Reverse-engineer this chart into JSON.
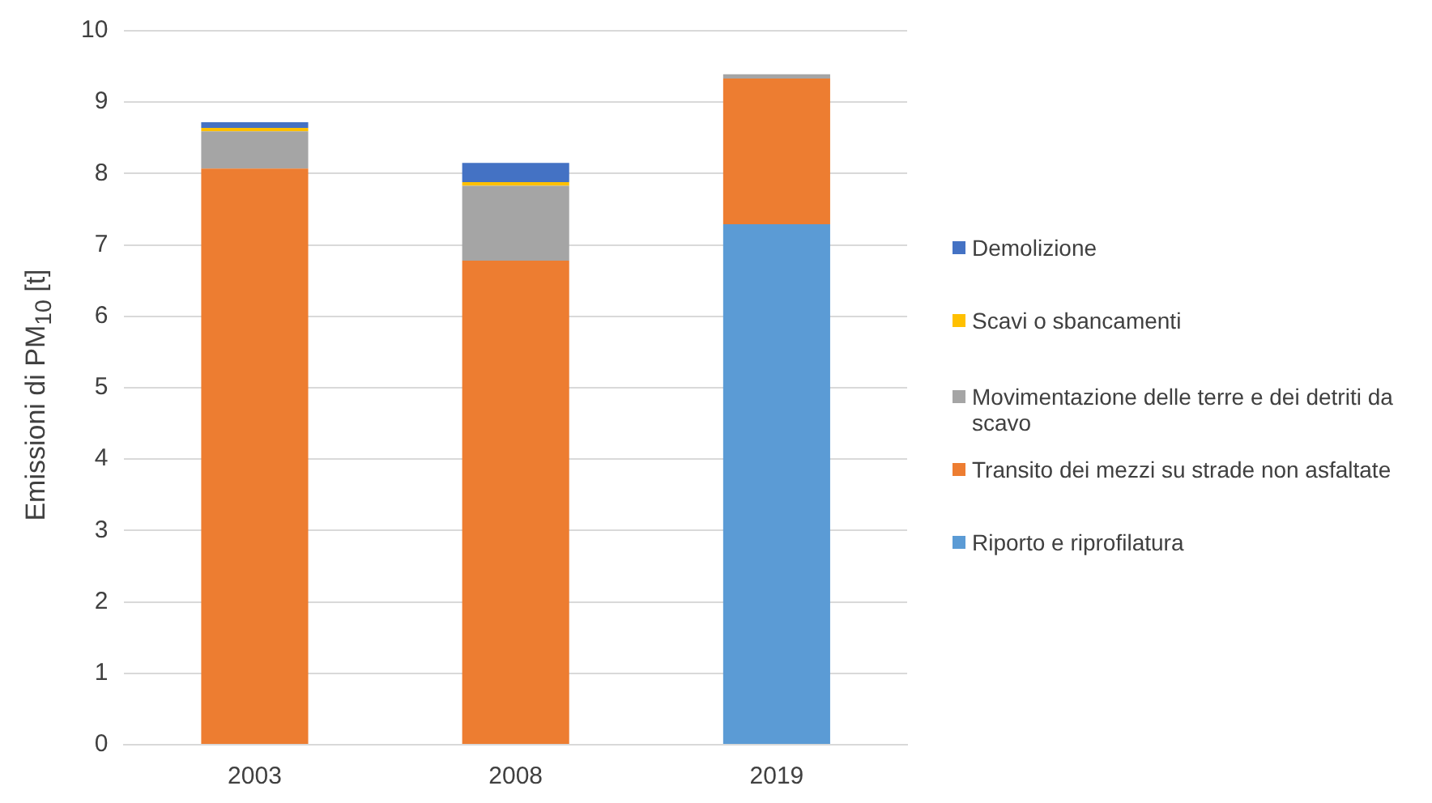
{
  "chart_data": {
    "type": "bar",
    "stacked": true,
    "ylabel": "Emissioni di PM$_{10}$ [t]",
    "categories": [
      "2003",
      "2008",
      "2019"
    ],
    "series": [
      {
        "name": "Riporto e riprofilatura",
        "color": "#5b9bd5",
        "values": [
          null,
          null,
          7.29
        ]
      },
      {
        "name": "Transito dei mezzi su strade non asfaltate",
        "color": "#ed7d31",
        "values": [
          8.07,
          6.78,
          2.04
        ]
      },
      {
        "name": "Movimentazione delle terre e dei detriti da scavo",
        "color": "#a5a5a5",
        "values": [
          0.52,
          1.05,
          0.06
        ]
      },
      {
        "name": "Scavi o sbancamenti",
        "color": "#ffc000",
        "values": [
          0.05,
          0.05,
          null
        ]
      },
      {
        "name": "Demolizione",
        "color": "#4472c4",
        "values": [
          0.08,
          0.27,
          null
        ]
      }
    ],
    "ylim": [
      0,
      10
    ],
    "yticks": [
      0,
      1,
      2,
      3,
      4,
      5,
      6,
      7,
      8,
      9,
      10
    ],
    "grid": "y",
    "legend": "right"
  }
}
